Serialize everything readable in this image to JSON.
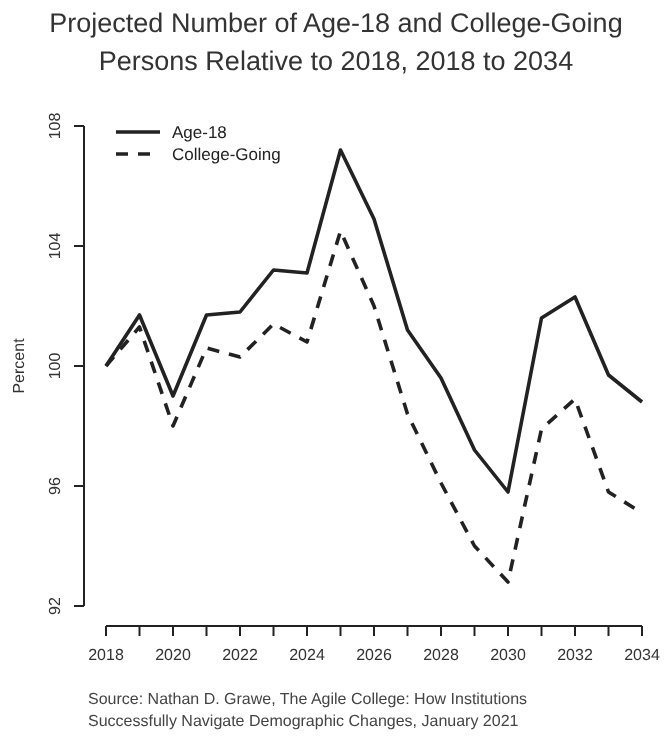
{
  "chart_data": {
    "type": "line",
    "title": "Projected Number of Age-18 and College-Going Persons Relative to 2018, 2018 to 2034",
    "ylabel": "Percent",
    "x": [
      2018,
      2019,
      2020,
      2021,
      2022,
      2023,
      2024,
      2025,
      2026,
      2027,
      2028,
      2029,
      2030,
      2031,
      2032,
      2033,
      2034
    ],
    "series": [
      {
        "name": "Age-18",
        "color": "#222222",
        "line_style": "solid",
        "values": [
          100,
          101.7,
          99.0,
          101.7,
          101.8,
          103.2,
          103.1,
          107.2,
          104.9,
          101.2,
          99.6,
          97.2,
          95.8,
          101.6,
          102.3,
          99.7,
          98.8
        ]
      },
      {
        "name": "College-Going",
        "color": "#222222",
        "line_style": "dashed",
        "values": [
          100,
          101.3,
          98.0,
          100.6,
          100.3,
          101.4,
          100.8,
          104.5,
          102.0,
          98.4,
          96.1,
          94.0,
          92.8,
          97.9,
          98.9,
          95.8,
          95.1
        ]
      }
    ],
    "xlim": [
      2018,
      2034
    ],
    "xticks": [
      2018,
      {
        "value": 2019,
        "label": null
      },
      2020,
      {
        "value": 2021,
        "label": null
      },
      2022,
      {
        "value": 2023,
        "label": null
      },
      2024,
      {
        "value": 2025,
        "label": null
      },
      2026,
      {
        "value": 2027,
        "label": null
      },
      2028,
      {
        "value": 2029,
        "label": null
      },
      2030,
      {
        "value": 2031,
        "label": null
      },
      2032,
      {
        "value": 2033,
        "label": null
      },
      2034
    ],
    "ylim": [
      92,
      108
    ],
    "yticks": [
      92,
      96,
      100,
      104,
      108
    ],
    "grid": false,
    "legend": "top left",
    "marker": "none",
    "annotations": [
      "Source: Nathan D. Grawe, The Agile College: How Institutions Successfully Navigate Demographic Changes, January 2021"
    ]
  }
}
